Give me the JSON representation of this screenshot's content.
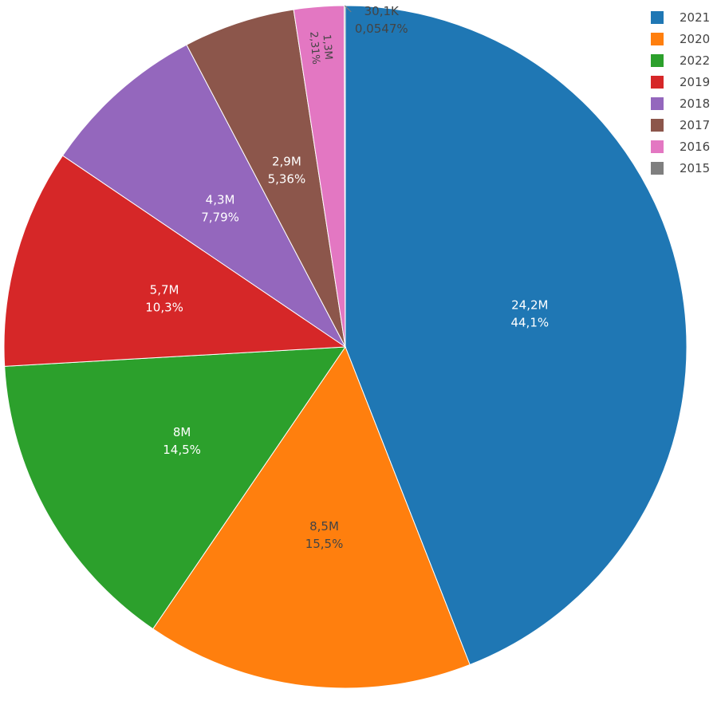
{
  "chart_data": {
    "type": "pie",
    "slices": [
      {
        "label": "2021",
        "value": 24200000,
        "value_label": "24,2M",
        "percent_label": "44,1%",
        "color": "#1f77b4"
      },
      {
        "label": "2020",
        "value": 8500000,
        "value_label": "8,5M",
        "percent_label": "15,5%",
        "color": "#ff7f0e"
      },
      {
        "label": "2022",
        "value": 8000000,
        "value_label": "8M",
        "percent_label": "14,5%",
        "color": "#2ca02c"
      },
      {
        "label": "2019",
        "value": 5700000,
        "value_label": "5,7M",
        "percent_label": "10,3%",
        "color": "#d62728"
      },
      {
        "label": "2018",
        "value": 4300000,
        "value_label": "4,3M",
        "percent_label": "7,79%",
        "color": "#9467bd"
      },
      {
        "label": "2017",
        "value": 2900000,
        "value_label": "2,9M",
        "percent_label": "5,36%",
        "color": "#8c564b"
      },
      {
        "label": "2016",
        "value": 1300000,
        "value_label": "1,3M",
        "percent_label": "2,31%",
        "color": "#e377c2"
      },
      {
        "label": "2015",
        "value": 30100,
        "value_label": "30,1K",
        "percent_label": "0,0547%",
        "color": "#7f7f7f"
      }
    ],
    "legend_placement": "top-right"
  }
}
